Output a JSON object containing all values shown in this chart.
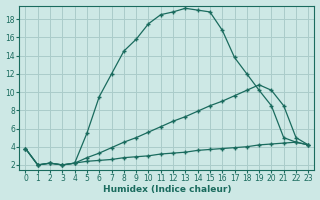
{
  "xlabel": "Humidex (Indice chaleur)",
  "bg_color": "#cde8e5",
  "plot_bg_color": "#cde8e5",
  "grid_color": "#aaccca",
  "line_color": "#1a6b5e",
  "xlim": [
    -0.5,
    23.5
  ],
  "ylim": [
    1.5,
    19.5
  ],
  "xticks": [
    0,
    1,
    2,
    3,
    4,
    5,
    6,
    7,
    8,
    9,
    10,
    11,
    12,
    13,
    14,
    15,
    16,
    17,
    18,
    19,
    20,
    21,
    22,
    23
  ],
  "yticks": [
    2,
    4,
    6,
    8,
    10,
    12,
    14,
    16,
    18
  ],
  "line1_x": [
    0,
    1,
    2,
    3,
    4,
    5,
    6,
    7,
    8,
    9,
    10,
    11,
    12,
    13,
    14,
    15,
    16,
    17,
    18,
    19,
    20,
    21,
    22,
    23
  ],
  "line1_y": [
    3.8,
    2.0,
    2.2,
    2.0,
    2.2,
    5.5,
    9.5,
    12.0,
    14.5,
    15.8,
    17.5,
    18.5,
    18.8,
    19.2,
    19.0,
    18.8,
    16.8,
    13.8,
    12.0,
    10.2,
    8.5,
    5.0,
    4.5,
    4.2
  ],
  "line2_x": [
    0,
    1,
    2,
    3,
    4,
    5,
    6,
    7,
    8,
    9,
    10,
    11,
    12,
    13,
    14,
    15,
    16,
    17,
    18,
    19,
    20,
    21,
    22,
    23
  ],
  "line2_y": [
    3.8,
    2.0,
    2.2,
    2.0,
    2.2,
    2.8,
    3.3,
    3.9,
    4.5,
    5.0,
    5.6,
    6.2,
    6.8,
    7.3,
    7.9,
    8.5,
    9.0,
    9.6,
    10.2,
    10.8,
    10.2,
    8.5,
    5.0,
    4.2
  ],
  "line3_x": [
    0,
    1,
    2,
    3,
    4,
    5,
    6,
    7,
    8,
    9,
    10,
    11,
    12,
    13,
    14,
    15,
    16,
    17,
    18,
    19,
    20,
    21,
    22,
    23
  ],
  "line3_y": [
    3.8,
    2.0,
    2.2,
    2.0,
    2.2,
    2.4,
    2.5,
    2.6,
    2.8,
    2.9,
    3.0,
    3.2,
    3.3,
    3.4,
    3.6,
    3.7,
    3.8,
    3.9,
    4.0,
    4.2,
    4.3,
    4.4,
    4.5,
    4.2
  ]
}
